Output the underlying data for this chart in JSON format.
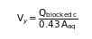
{
  "num_sub": "blocked c",
  "denom_sub": "aq",
  "text_color": "#000000",
  "background_color": "#ffffff",
  "fig_width": 1.02,
  "fig_height": 0.44,
  "dpi": 100,
  "fontsize": 7.5
}
